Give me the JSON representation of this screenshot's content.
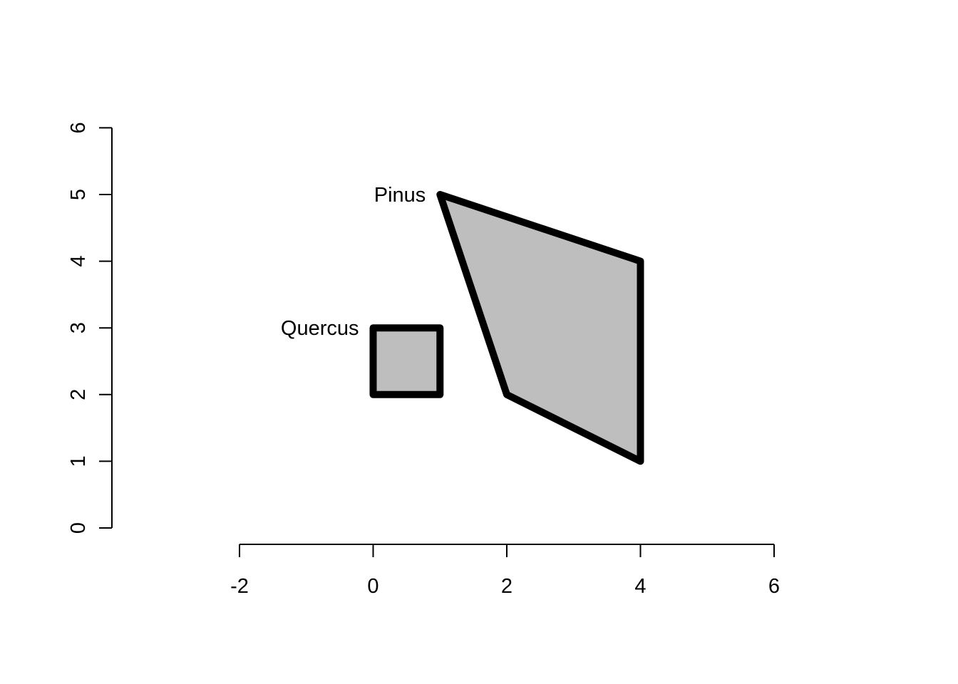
{
  "chart_data": {
    "type": "polygon",
    "title": "",
    "xlabel": "",
    "ylabel": "",
    "xlim": [
      -2,
      6
    ],
    "ylim": [
      0,
      6
    ],
    "x_ticks": [
      -2,
      0,
      2,
      4,
      6
    ],
    "y_ticks": [
      0,
      1,
      2,
      3,
      4,
      5,
      6
    ],
    "x_tick_labels": [
      "-2",
      "0",
      "2",
      "4",
      "6"
    ],
    "y_tick_labels": [
      "0",
      "1",
      "2",
      "3",
      "4",
      "5",
      "6"
    ],
    "grid": false,
    "fill_color": "#bebebe",
    "stroke_color": "#000000",
    "polygons": [
      {
        "label": "Quercus",
        "label_at": [
          0,
          3
        ],
        "points": [
          [
            0,
            2
          ],
          [
            0,
            3
          ],
          [
            1,
            3
          ],
          [
            1,
            2
          ]
        ]
      },
      {
        "label": "Pinus",
        "label_at": [
          1,
          5
        ],
        "points": [
          [
            1,
            5
          ],
          [
            4,
            4
          ],
          [
            4,
            1
          ],
          [
            2,
            2
          ]
        ]
      }
    ]
  }
}
